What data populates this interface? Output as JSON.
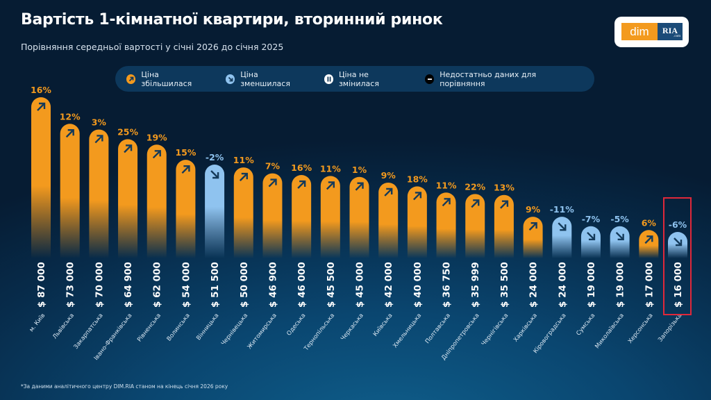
{
  "header": {
    "title": "Вартість 1-кімнатної квартири, вторинний ринок",
    "subtitle": "Порівняння середньої вартості у січні 2026 до січня 2025"
  },
  "logo": {
    "left": "dim",
    "right": "RIA",
    "right_sub": ".com"
  },
  "legend": {
    "items": [
      {
        "label": "Ціна збільшилася",
        "icon": "arrow-up-right-icon",
        "color": "#f39a1e"
      },
      {
        "label": "Ціна зменшилася",
        "icon": "arrow-down-right-icon",
        "color": "#8fc3ef"
      },
      {
        "label": "Ціна не змінилася",
        "icon": "pause-icon",
        "color": "#ffffff"
      },
      {
        "label": "Недостатньо даних для порівняння",
        "icon": "minus-icon",
        "color": "#000000"
      }
    ]
  },
  "colors": {
    "increase": "#f39a1e",
    "decrease": "#8fc3ef",
    "arrow": "#143a5a",
    "highlight": "#e0283a"
  },
  "footnote": "*За даними аналітичного центру DIM.RIA станом на кінець січня 2026 року",
  "chart_data": {
    "type": "bar",
    "title": "Вартість 1-кімнатної квартири, вторинний ринок",
    "subtitle": "Порівняння середньої вартості у січні 2026 до січня 2025",
    "xlabel": "",
    "ylabel": "",
    "currency": "$",
    "ylim": [
      0,
      87000
    ],
    "highlighted": "Запорізька",
    "categories": [
      "м. Київ",
      "Львівська",
      "Закарпатська",
      "Івано-Франківська",
      "Рівненська",
      "Волинська",
      "Вінницька",
      "Чернівецька",
      "Житомирська",
      "Одеська",
      "Тернопільська",
      "Черкаська",
      "Київська",
      "Хмельницька",
      "Полтавська",
      "Дніпропетровська",
      "Чернігівська",
      "Харківська",
      "Кіровоградська",
      "Сумська",
      "Миколаївська",
      "Херсонська",
      "Запорізька"
    ],
    "price_labels": [
      "$ 87 000",
      "$ 73 000",
      "$ 70 000",
      "$ 64 900",
      "$ 62 000",
      "$ 54 000",
      "$ 51 500",
      "$ 50 000",
      "$ 46 900",
      "$ 46 000",
      "$ 45 500",
      "$ 45 000",
      "$ 42 000",
      "$ 40 000",
      "$ 36 750",
      "$ 35 999",
      "$ 35 500",
      "$ 24 000",
      "$ 24 000",
      "$ 19 000",
      "$ 19 000",
      "$ 17 000",
      "$ 16 000"
    ],
    "values": [
      87000,
      73000,
      70000,
      64900,
      62000,
      54000,
      51500,
      50000,
      46900,
      46000,
      45500,
      45000,
      42000,
      40000,
      36750,
      35999,
      35500,
      24000,
      24000,
      19000,
      19000,
      17000,
      16000
    ],
    "change_labels": [
      "16%",
      "12%",
      "3%",
      "25%",
      "19%",
      "15%",
      "-2%",
      "11%",
      "7%",
      "16%",
      "11%",
      "1%",
      "9%",
      "18%",
      "11%",
      "22%",
      "13%",
      "9%",
      "-11%",
      "-7%",
      "-5%",
      "6%",
      "-6%"
    ],
    "change_pct": [
      16,
      12,
      3,
      25,
      19,
      15,
      -2,
      11,
      7,
      16,
      11,
      1,
      9,
      18,
      11,
      22,
      13,
      9,
      -11,
      -7,
      -5,
      6,
      -6
    ]
  }
}
